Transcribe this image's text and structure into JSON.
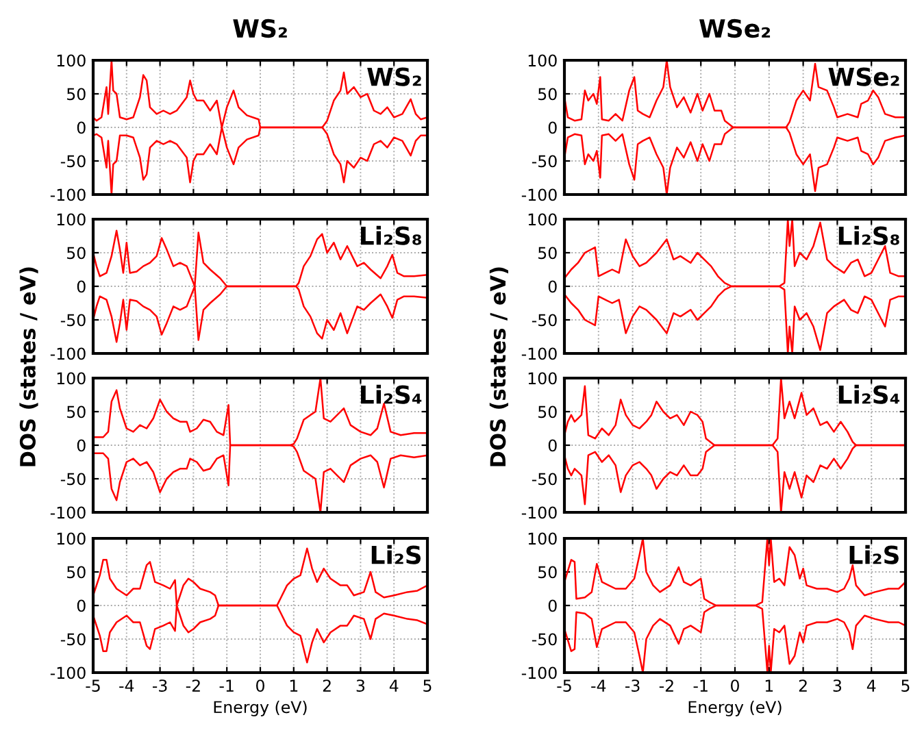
{
  "chart_data": [
    {
      "type": "line",
      "title": "WS₂",
      "annotations": [
        "WS₂"
      ],
      "xlim": [
        -5,
        5
      ],
      "ylim": [
        -100,
        100
      ],
      "xticks": [
        -5,
        -4,
        -3,
        -2,
        -1,
        0,
        1,
        2,
        3,
        4,
        5
      ],
      "yticks": [
        -100,
        -50,
        0,
        50,
        100
      ],
      "grid": true,
      "tick_labels": "y",
      "x": [
        -5,
        -4.9,
        -4.75,
        -4.6,
        -4.55,
        -4.45,
        -4.4,
        -4.3,
        -4.2,
        -4.0,
        -3.8,
        -3.6,
        -3.5,
        -3.4,
        -3.3,
        -3.1,
        -2.9,
        -2.7,
        -2.5,
        -2.35,
        -2.2,
        -2.1,
        -2.0,
        -1.9,
        -1.7,
        -1.5,
        -1.3,
        -1.15,
        -1.0,
        -0.8,
        -0.65,
        -0.4,
        -0.05,
        0,
        1.85,
        1.9,
        2.0,
        2.2,
        2.4,
        2.5,
        2.6,
        2.8,
        3.0,
        3.2,
        3.4,
        3.6,
        3.8,
        4.0,
        4.25,
        4.5,
        4.65,
        4.8,
        5.0
      ],
      "series": [
        {
          "color": "#ff0000",
          "values": [
            15,
            10,
            15,
            60,
            20,
            100,
            55,
            50,
            15,
            12,
            15,
            45,
            78,
            70,
            30,
            20,
            25,
            20,
            25,
            35,
            45,
            70,
            50,
            40,
            40,
            25,
            40,
            0,
            30,
            55,
            30,
            18,
            12,
            0,
            0,
            3,
            10,
            40,
            55,
            82,
            50,
            60,
            45,
            50,
            25,
            20,
            30,
            15,
            20,
            42,
            20,
            12,
            15
          ]
        },
        {
          "color": "#ff0000",
          "values": [
            -12,
            -10,
            -15,
            -60,
            -20,
            -100,
            -55,
            -50,
            -12,
            -12,
            -15,
            -45,
            -78,
            -70,
            -30,
            -20,
            -25,
            -20,
            -25,
            -35,
            -45,
            -82,
            -50,
            -40,
            -40,
            -25,
            -40,
            0,
            -30,
            -55,
            -30,
            -18,
            -12,
            0,
            0,
            -3,
            -10,
            -40,
            -55,
            -82,
            -50,
            -60,
            -45,
            -50,
            -25,
            -20,
            -30,
            -15,
            -20,
            -42,
            -20,
            -12,
            -12
          ]
        }
      ]
    },
    {
      "type": "line",
      "title": "WSe₂",
      "annotations": [
        "WSe₂"
      ],
      "xlim": [
        -5,
        5
      ],
      "ylim": [
        -100,
        100
      ],
      "xticks": [
        -5,
        -4,
        -3,
        -2,
        -1,
        0,
        1,
        2,
        3,
        4,
        5
      ],
      "yticks": [
        -100,
        -50,
        0,
        50,
        100
      ],
      "grid": true,
      "tick_labels": "y",
      "x": [
        -5,
        -4.9,
        -4.7,
        -4.5,
        -4.4,
        -4.3,
        -4.15,
        -4.05,
        -3.95,
        -3.9,
        -3.7,
        -3.5,
        -3.3,
        -3.1,
        -2.95,
        -2.85,
        -2.7,
        -2.5,
        -2.3,
        -2.1,
        -2.0,
        -1.9,
        -1.7,
        -1.5,
        -1.3,
        -1.1,
        -0.95,
        -0.75,
        -0.6,
        -0.4,
        -0.3,
        -0.05,
        1.5,
        1.6,
        1.8,
        2.0,
        2.2,
        2.35,
        2.45,
        2.7,
        2.9,
        3.0,
        3.3,
        3.6,
        3.7,
        3.9,
        4.05,
        4.2,
        4.4,
        4.7,
        5.0
      ],
      "series": [
        {
          "color": "#ff0000",
          "values": [
            45,
            15,
            10,
            12,
            55,
            40,
            50,
            35,
            75,
            12,
            10,
            20,
            10,
            55,
            75,
            25,
            20,
            15,
            40,
            60,
            100,
            60,
            30,
            45,
            22,
            50,
            25,
            50,
            25,
            25,
            10,
            0,
            0,
            8,
            40,
            55,
            40,
            95,
            60,
            55,
            30,
            15,
            20,
            15,
            35,
            40,
            55,
            45,
            20,
            15,
            15
          ]
        },
        {
          "color": "#ff0000",
          "values": [
            -45,
            -15,
            -10,
            -12,
            -55,
            -40,
            -50,
            -35,
            -75,
            -12,
            -10,
            -20,
            -10,
            -55,
            -78,
            -25,
            -20,
            -15,
            -40,
            -60,
            -100,
            -60,
            -30,
            -45,
            -22,
            -50,
            -25,
            -50,
            -25,
            -25,
            -10,
            0,
            0,
            -8,
            -40,
            -55,
            -40,
            -95,
            -60,
            -55,
            -30,
            -15,
            -20,
            -15,
            -35,
            -40,
            -55,
            -45,
            -20,
            -15,
            -12
          ]
        }
      ]
    },
    {
      "type": "line",
      "ylabel": "DOS (states / eV)",
      "annotations": [
        "Li₂S₈"
      ],
      "xlim": [
        -5,
        5
      ],
      "ylim": [
        -100,
        100
      ],
      "xticks": [
        -5,
        -4,
        -3,
        -2,
        -1,
        0,
        1,
        2,
        3,
        4,
        5
      ],
      "yticks": [
        -100,
        -50,
        0,
        50,
        100
      ],
      "grid": true,
      "tick_labels": "y",
      "x": [
        -5,
        -4.9,
        -4.8,
        -4.6,
        -4.45,
        -4.3,
        -4.2,
        -4.1,
        -4.0,
        -3.9,
        -3.7,
        -3.5,
        -3.3,
        -3.1,
        -2.95,
        -2.8,
        -2.6,
        -2.4,
        -2.2,
        -1.96,
        -1.85,
        -1.7,
        -1.5,
        -1.2,
        -1.0,
        1.07,
        1.15,
        1.3,
        1.5,
        1.7,
        1.85,
        2.0,
        2.2,
        2.4,
        2.6,
        2.9,
        3.1,
        3.3,
        3.6,
        3.8,
        3.95,
        4.1,
        4.3,
        4.6,
        5.0
      ],
      "series": [
        {
          "color": "#ff0000",
          "values": [
            50,
            30,
            15,
            20,
            45,
            83,
            55,
            20,
            65,
            20,
            22,
            30,
            35,
            45,
            72,
            55,
            30,
            35,
            30,
            0,
            80,
            35,
            25,
            12,
            0,
            0,
            5,
            30,
            45,
            70,
            78,
            50,
            65,
            40,
            60,
            30,
            35,
            25,
            12,
            30,
            47,
            20,
            15,
            15,
            17
          ]
        },
        {
          "color": "#ff0000",
          "values": [
            -50,
            -30,
            -15,
            -20,
            -45,
            -83,
            -55,
            -20,
            -65,
            -20,
            -22,
            -30,
            -35,
            -45,
            -72,
            -55,
            -30,
            -35,
            -30,
            0,
            -80,
            -35,
            -25,
            -12,
            0,
            0,
            -5,
            -30,
            -45,
            -70,
            -78,
            -50,
            -65,
            -40,
            -70,
            -30,
            -35,
            -25,
            -12,
            -30,
            -47,
            -20,
            -15,
            -15,
            -17
          ]
        }
      ]
    },
    {
      "type": "line",
      "ylabel": "DOS (states / eV)",
      "annotations": [
        "Li₂S₈"
      ],
      "xlim": [
        -5,
        5
      ],
      "ylim": [
        -100,
        100
      ],
      "xticks": [
        -5,
        -4,
        -3,
        -2,
        -1,
        0,
        1,
        2,
        3,
        4,
        5
      ],
      "yticks": [
        -100,
        -50,
        0,
        50,
        100
      ],
      "grid": true,
      "tick_labels": "y",
      "x": [
        -5,
        -4.8,
        -4.6,
        -4.4,
        -4.1,
        -4.0,
        -3.8,
        -3.6,
        -3.4,
        -3.2,
        -3.0,
        -2.8,
        -2.6,
        -2.3,
        -2.0,
        -1.8,
        -1.6,
        -1.3,
        -1.1,
        -0.9,
        -0.7,
        -0.5,
        -0.3,
        -0.1,
        1.3,
        1.45,
        1.55,
        1.6,
        1.68,
        1.75,
        1.9,
        2.1,
        2.3,
        2.5,
        2.7,
        2.9,
        3.2,
        3.4,
        3.6,
        3.8,
        4.0,
        4.2,
        4.4,
        4.55,
        4.8,
        5.0
      ],
      "series": [
        {
          "color": "#ff0000",
          "values": [
            12,
            25,
            35,
            50,
            58,
            15,
            20,
            25,
            20,
            70,
            45,
            30,
            35,
            50,
            70,
            40,
            45,
            35,
            50,
            40,
            30,
            15,
            5,
            0,
            0,
            5,
            100,
            60,
            100,
            30,
            50,
            40,
            60,
            95,
            40,
            30,
            20,
            35,
            40,
            15,
            20,
            40,
            60,
            20,
            15,
            15
          ]
        },
        {
          "color": "#ff0000",
          "values": [
            -12,
            -25,
            -35,
            -50,
            -58,
            -15,
            -20,
            -25,
            -20,
            -70,
            -45,
            -30,
            -35,
            -50,
            -70,
            -40,
            -45,
            -35,
            -50,
            -40,
            -30,
            -15,
            -5,
            0,
            0,
            -5,
            -100,
            -60,
            -100,
            -30,
            -50,
            -40,
            -60,
            -95,
            -40,
            -30,
            -20,
            -35,
            -40,
            -15,
            -20,
            -40,
            -60,
            -20,
            -15,
            -15
          ]
        }
      ]
    },
    {
      "type": "line",
      "annotations": [
        "Li₂S₄"
      ],
      "xlim": [
        -5,
        5
      ],
      "ylim": [
        -100,
        100
      ],
      "xticks": [
        -5,
        -4,
        -3,
        -2,
        -1,
        0,
        1,
        2,
        3,
        4,
        5
      ],
      "yticks": [
        -100,
        -50,
        0,
        50,
        100
      ],
      "grid": true,
      "tick_labels": "y",
      "x": [
        -5,
        -4.7,
        -4.55,
        -4.45,
        -4.3,
        -4.2,
        -4.0,
        -3.8,
        -3.6,
        -3.4,
        -3.2,
        -3.0,
        -2.8,
        -2.6,
        -2.4,
        -2.2,
        -2.1,
        -1.9,
        -1.7,
        -1.5,
        -1.3,
        -1.1,
        -0.95,
        -0.9,
        0.9,
        1.0,
        1.1,
        1.3,
        1.5,
        1.65,
        1.8,
        1.9,
        2.1,
        2.5,
        2.7,
        3.0,
        3.3,
        3.5,
        3.7,
        3.9,
        4.2,
        4.6,
        5.0
      ],
      "series": [
        {
          "color": "#ff0000",
          "values": [
            12,
            12,
            20,
            65,
            82,
            55,
            25,
            20,
            30,
            25,
            40,
            68,
            50,
            40,
            35,
            35,
            20,
            25,
            38,
            35,
            20,
            15,
            60,
            0,
            0,
            2,
            10,
            38,
            45,
            50,
            100,
            40,
            35,
            55,
            30,
            20,
            15,
            25,
            62,
            20,
            15,
            18,
            18
          ]
        },
        {
          "color": "#ff0000",
          "values": [
            -12,
            -12,
            -20,
            -65,
            -82,
            -55,
            -25,
            -20,
            -30,
            -25,
            -40,
            -70,
            -50,
            -40,
            -35,
            -35,
            -20,
            -25,
            -38,
            -35,
            -20,
            -15,
            -60,
            0,
            0,
            -2,
            -10,
            -38,
            -45,
            -50,
            -100,
            -40,
            -35,
            -55,
            -30,
            -20,
            -15,
            -25,
            -63,
            -20,
            -15,
            -18,
            -15
          ]
        }
      ]
    },
    {
      "type": "line",
      "annotations": [
        "Li₂S₄"
      ],
      "xlim": [
        -5,
        5
      ],
      "ylim": [
        -100,
        100
      ],
      "xticks": [
        -5,
        -4,
        -3,
        -2,
        -1,
        0,
        1,
        2,
        3,
        4,
        5
      ],
      "yticks": [
        -100,
        -50,
        0,
        50,
        100
      ],
      "grid": true,
      "tick_labels": "y",
      "x": [
        -5,
        -4.9,
        -4.8,
        -4.7,
        -4.6,
        -4.5,
        -4.4,
        -4.3,
        -4.1,
        -3.9,
        -3.7,
        -3.5,
        -3.35,
        -3.2,
        -3.0,
        -2.8,
        -2.6,
        -2.45,
        -2.3,
        -2.1,
        -1.9,
        -1.7,
        -1.5,
        -1.3,
        -1.1,
        -0.95,
        -0.85,
        -0.6,
        1.1,
        1.25,
        1.35,
        1.45,
        1.6,
        1.75,
        1.95,
        2.1,
        2.3,
        2.5,
        2.7,
        2.9,
        3.1,
        3.3,
        3.45,
        3.55,
        5.0
      ],
      "series": [
        {
          "color": "#ff0000",
          "values": [
            15,
            35,
            45,
            35,
            40,
            45,
            88,
            15,
            10,
            25,
            15,
            30,
            68,
            45,
            30,
            25,
            35,
            45,
            65,
            50,
            40,
            45,
            30,
            50,
            45,
            35,
            10,
            0,
            0,
            10,
            100,
            40,
            65,
            40,
            78,
            45,
            55,
            30,
            35,
            20,
            35,
            20,
            5,
            0,
            0
          ]
        },
        {
          "color": "#ff0000",
          "values": [
            -15,
            -35,
            -45,
            -35,
            -40,
            -45,
            -88,
            -15,
            -10,
            -25,
            -15,
            -30,
            -70,
            -45,
            -30,
            -25,
            -35,
            -45,
            -65,
            -50,
            -40,
            -45,
            -30,
            -45,
            -45,
            -35,
            -10,
            0,
            0,
            -10,
            -100,
            -40,
            -65,
            -40,
            -78,
            -45,
            -55,
            -30,
            -35,
            -20,
            -35,
            -20,
            -5,
            0,
            0
          ]
        }
      ]
    },
    {
      "type": "line",
      "xlabel": "Energy (eV)",
      "annotations": [
        "Li₂S"
      ],
      "xlim": [
        -5,
        5
      ],
      "ylim": [
        -100,
        100
      ],
      "xticks": [
        -5,
        -4,
        -3,
        -2,
        -1,
        0,
        1,
        2,
        3,
        4,
        5
      ],
      "yticks": [
        -100,
        -50,
        0,
        50,
        100
      ],
      "grid": true,
      "x": [
        -5,
        -4.8,
        -4.7,
        -4.6,
        -4.5,
        -4.3,
        -4.0,
        -3.8,
        -3.6,
        -3.4,
        -3.3,
        -3.15,
        -2.9,
        -2.7,
        -2.55,
        -2.5,
        -2.3,
        -2.15,
        -2.0,
        -1.8,
        -1.5,
        -1.35,
        -1.25,
        0.5,
        0.55,
        0.6,
        0.8,
        1.0,
        1.2,
        1.4,
        1.55,
        1.7,
        1.9,
        2.1,
        2.4,
        2.6,
        2.8,
        3.1,
        3.3,
        3.45,
        3.7,
        4.0,
        4.4,
        4.7,
        5.0
      ],
      "series": [
        {
          "color": "#ff0000",
          "values": [
            15,
            45,
            68,
            68,
            40,
            25,
            15,
            25,
            25,
            60,
            65,
            35,
            30,
            25,
            38,
            0,
            30,
            40,
            35,
            25,
            20,
            15,
            0,
            0,
            5,
            10,
            30,
            40,
            45,
            85,
            55,
            35,
            55,
            40,
            30,
            30,
            15,
            20,
            50,
            20,
            12,
            15,
            20,
            22,
            30
          ]
        },
        {
          "color": "#ff0000",
          "values": [
            -15,
            -45,
            -68,
            -68,
            -40,
            -25,
            -15,
            -25,
            -25,
            -60,
            -65,
            -35,
            -30,
            -25,
            -38,
            0,
            -30,
            -40,
            -35,
            -25,
            -20,
            -15,
            0,
            0,
            -5,
            -10,
            -30,
            -40,
            -45,
            -85,
            -55,
            -35,
            -55,
            -40,
            -30,
            -30,
            -15,
            -20,
            -50,
            -20,
            -12,
            -15,
            -20,
            -22,
            -28
          ]
        }
      ]
    },
    {
      "type": "line",
      "xlabel": "Energy (eV)",
      "annotations": [
        "Li₂S"
      ],
      "xlim": [
        -5,
        5
      ],
      "ylim": [
        -100,
        100
      ],
      "xticks": [
        -5,
        -4,
        -3,
        -2,
        -1,
        0,
        1,
        2,
        3,
        4,
        5
      ],
      "yticks": [
        -100,
        -50,
        0,
        50,
        100
      ],
      "grid": true,
      "x": [
        -5,
        -4.8,
        -4.7,
        -4.65,
        -4.4,
        -4.2,
        -4.05,
        -3.9,
        -3.7,
        -3.5,
        -3.2,
        -2.95,
        -2.8,
        -2.7,
        -2.6,
        -2.4,
        -2.2,
        -1.9,
        -1.65,
        -1.5,
        -1.3,
        -1.0,
        -0.9,
        -0.75,
        -0.55,
        0.6,
        0.8,
        0.95,
        1.0,
        1.05,
        1.15,
        1.3,
        1.45,
        1.6,
        1.75,
        1.9,
        2.0,
        2.1,
        2.4,
        2.7,
        3.0,
        3.2,
        3.35,
        3.45,
        3.55,
        3.8,
        4.1,
        4.5,
        4.8,
        5.0
      ],
      "series": [
        {
          "color": "#ff0000",
          "values": [
            35,
            68,
            65,
            10,
            12,
            20,
            62,
            35,
            30,
            25,
            25,
            40,
            75,
            100,
            50,
            30,
            20,
            30,
            57,
            35,
            30,
            40,
            10,
            5,
            0,
            0,
            5,
            100,
            60,
            100,
            35,
            40,
            30,
            87,
            75,
            40,
            55,
            30,
            25,
            25,
            20,
            25,
            40,
            60,
            30,
            15,
            20,
            25,
            25,
            35
          ]
        },
        {
          "color": "#ff0000",
          "values": [
            -35,
            -68,
            -65,
            -10,
            -12,
            -20,
            -62,
            -35,
            -30,
            -25,
            -25,
            -40,
            -75,
            -100,
            -50,
            -30,
            -20,
            -30,
            -57,
            -35,
            -30,
            -40,
            -10,
            -5,
            0,
            0,
            -5,
            -100,
            -60,
            -100,
            -35,
            -40,
            -30,
            -87,
            -75,
            -40,
            -55,
            -30,
            -25,
            -25,
            -20,
            -25,
            -40,
            -65,
            -30,
            -15,
            -20,
            -25,
            -25,
            -30
          ]
        }
      ]
    }
  ]
}
